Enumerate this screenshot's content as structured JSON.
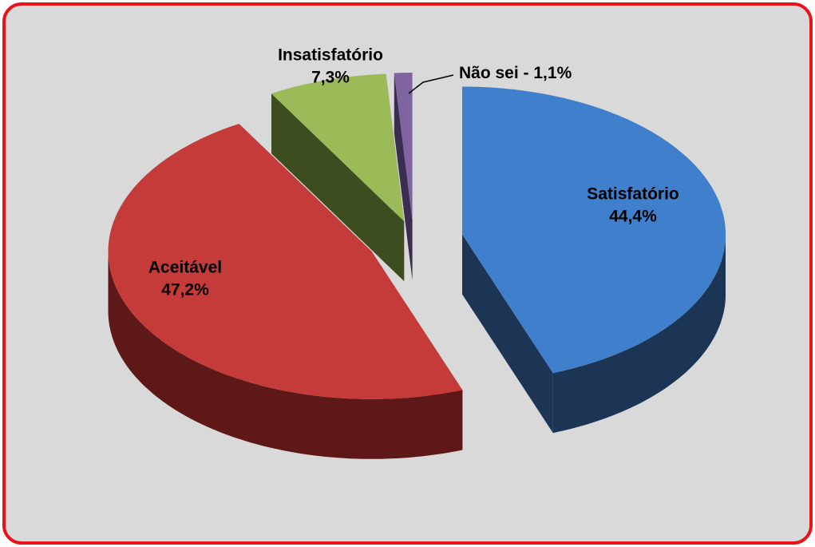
{
  "chart_data": {
    "type": "pie3d",
    "categories": [
      "Satisfatório",
      "Aceitável",
      "Insatisfatório",
      "Não sei"
    ],
    "values": [
      44.4,
      47.2,
      7.3,
      1.1
    ],
    "value_labels": [
      "44,4%",
      "47,2%",
      "7,3%",
      "1,1%"
    ],
    "leader_label_separator": " - ",
    "colors": [
      "#3f7fcc",
      "#c53b39",
      "#9bbb59",
      "#8064a2"
    ],
    "side_colors": [
      "#1c3555",
      "#5e1818",
      "#3e4d20",
      "#3b2d4f"
    ]
  }
}
